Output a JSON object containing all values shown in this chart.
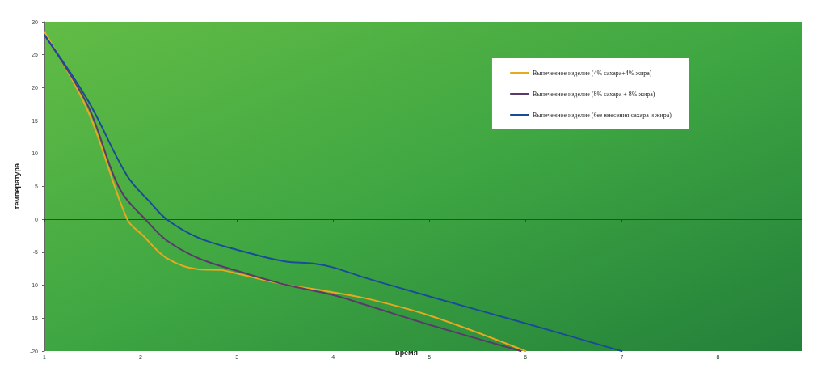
{
  "chart_data": {
    "type": "line",
    "xlabel": "время",
    "ylabel": "температура",
    "xlim": [
      1,
      8.87
    ],
    "xticks": [
      1,
      2,
      3,
      4,
      5,
      6,
      7,
      8
    ],
    "ylim": [
      -20,
      30
    ],
    "yticks": [
      -20,
      -15,
      -10,
      -5,
      0,
      5,
      10,
      15,
      20,
      25,
      30
    ],
    "grid": false,
    "legend": "top right",
    "marker": "none",
    "line_style": "solid",
    "series": [
      {
        "name": "Выпеченное изделие (4% сахара+4% жира)",
        "color": "#e8a820",
        "x": [
          1,
          1.45,
          1.86,
          2.02,
          2.27,
          2.6,
          2.83,
          3.02,
          3.5,
          3.93,
          4.34,
          5,
          6
        ],
        "values": [
          28.5,
          16.5,
          0,
          -2.4,
          -5.9,
          -7.6,
          -7.7,
          -8.3,
          -9.9,
          -10.9,
          -12,
          -14.6,
          -20
        ]
      },
      {
        "name": "Выпеченное изделие (8% сахара + 8% жира)",
        "color": "#5a3a6a",
        "x": [
          1,
          1.45,
          1.78,
          2.08,
          2.27,
          2.6,
          3.02,
          3.5,
          4,
          4.34,
          5,
          5.95
        ],
        "values": [
          28,
          17.3,
          4.7,
          -0.5,
          -3.2,
          -5.9,
          -7.9,
          -9.9,
          -11.5,
          -13,
          -16,
          -20
        ]
      },
      {
        "name": "Выпеченное изделие (без внесения сахара и жира)",
        "color": "#1a4a9a",
        "x": [
          1,
          1.45,
          1.86,
          2.11,
          2.27,
          2.6,
          3.02,
          3.5,
          3.79,
          4,
          4.34,
          5,
          6,
          7
        ],
        "values": [
          28,
          18.1,
          6.6,
          2.4,
          0,
          -2.8,
          -4.7,
          -6.4,
          -6.7,
          -7.3,
          -8.9,
          -11.7,
          -15.8,
          -20
        ]
      }
    ]
  }
}
